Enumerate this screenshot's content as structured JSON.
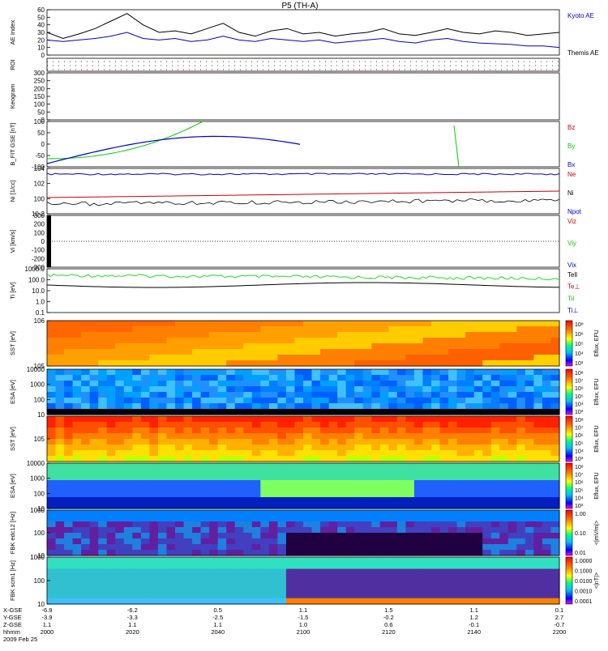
{
  "title": "P5 (TH-A)",
  "colors": {
    "kyoto": "#000000",
    "themis": "#0000cc",
    "red": "#cc0000",
    "green": "#00cc00",
    "blue": "#0000cc",
    "black": "#000000"
  },
  "chart_data": [
    {
      "type": "line",
      "name": "AE Index",
      "ylabel": "AE Index",
      "ylim": [
        0,
        60
      ],
      "yticks": [
        "0",
        "10",
        "20",
        "30",
        "40",
        "50",
        "60"
      ],
      "legend": [
        "Kyoto AE",
        "Themis AE"
      ],
      "series": [
        {
          "name": "Kyoto AE",
          "color": "#000000",
          "values": [
            30,
            22,
            28,
            35,
            45,
            55,
            40,
            30,
            32,
            28,
            35,
            42,
            30,
            25,
            32,
            35,
            28,
            30,
            25,
            28,
            30,
            35,
            28,
            26,
            30,
            35,
            30,
            28,
            32,
            30,
            26,
            28,
            30
          ]
        },
        {
          "name": "Themis AE",
          "color": "#0000cc",
          "values": [
            20,
            18,
            20,
            22,
            25,
            30,
            22,
            20,
            22,
            18,
            20,
            25,
            20,
            18,
            22,
            20,
            18,
            20,
            16,
            18,
            20,
            22,
            18,
            16,
            20,
            22,
            18,
            16,
            15,
            14,
            12,
            12,
            10
          ]
        }
      ]
    },
    {
      "type": "heatmap",
      "name": "ROI",
      "ylabel": "ROI"
    },
    {
      "type": "line",
      "name": "Keogram",
      "ylabel": "Keogram",
      "ylim": [
        0,
        300
      ],
      "yticks": [
        "0",
        "50",
        "100",
        "150",
        "200",
        "250",
        "300"
      ]
    },
    {
      "type": "line",
      "name": "B FIT",
      "ylabel": "B_FIT GSE [nT]",
      "ylim": [
        -100,
        100
      ],
      "yticks": [
        "-100",
        "-50",
        "0",
        "50",
        "100"
      ],
      "legend": [
        "Bz",
        "By",
        "Bx"
      ]
    },
    {
      "type": "line",
      "name": "Ni",
      "ylabel": "Ni [1/cc]",
      "yscale": "log",
      "yticks": [
        "10-2",
        "100",
        "102",
        "104"
      ],
      "legend": [
        "Ne",
        "Ni",
        "Npot"
      ]
    },
    {
      "type": "line",
      "name": "Vi",
      "ylabel": "Vi [km/s]",
      "ylim": [
        -300,
        300
      ],
      "yticks": [
        "-300",
        "-200",
        "-100",
        "0",
        "100",
        "200",
        "300"
      ],
      "legend": [
        "Viz",
        "Viy",
        "Vix"
      ]
    },
    {
      "type": "line",
      "name": "Ti",
      "ylabel": "Ti [eV]",
      "yscale": "log",
      "yticks": [
        "0.1",
        "1.0",
        "10.0",
        "100.0",
        "1000.0"
      ],
      "legend": [
        "Tell",
        "Te⊥",
        "Til",
        "Ti⊥"
      ]
    },
    {
      "type": "heatmap",
      "name": "SST ions",
      "ylabel": "SST [eV]",
      "yticks": [
        "105",
        "106"
      ],
      "cbar": [
        "10⁸",
        "10⁶",
        "10⁵",
        "10⁴",
        "10³"
      ],
      "cbar_label": "Eflux, EFU"
    },
    {
      "type": "heatmap",
      "name": "ESA ions",
      "ylabel": "ESA [eV]",
      "yticks": [
        "10",
        "100",
        "1000",
        "10000"
      ],
      "cbar": [
        "10⁸",
        "10⁷",
        "10⁶",
        "10⁵",
        "10⁴",
        "10³"
      ],
      "cbar_label": "Eflux, EFU"
    },
    {
      "type": "heatmap",
      "name": "SST elec",
      "ylabel": "SST [eV]",
      "yticks": [
        "105"
      ],
      "cbar": [
        "10⁸",
        "10⁷",
        "10⁶",
        "10⁵",
        "10⁴",
        "10³"
      ],
      "cbar_label": "Eflux, EFU"
    },
    {
      "type": "heatmap",
      "name": "ESA elec",
      "ylabel": "ESA [eV]",
      "yticks": [
        "10",
        "100",
        "1000",
        "10000"
      ],
      "cbar": [
        "10⁸",
        "10⁷",
        "10⁶",
        "10⁵",
        "10⁴",
        "10³"
      ],
      "cbar_label": "Eflux, EFU"
    },
    {
      "type": "heatmap",
      "name": "FBK edc12",
      "ylabel": "FBK edc12 [Hz]",
      "yticks": [
        "10",
        "100",
        "1000"
      ],
      "cbar": [
        "1.00",
        "0.10",
        "0.01"
      ],
      "cbar_label": "<|mV/m|>"
    },
    {
      "type": "heatmap",
      "name": "FBK scm1",
      "ylabel": "FBK scm1 [Hz]",
      "yticks": [
        "10",
        "100",
        "1000"
      ],
      "cbar": [
        "1.0000",
        "0.1000",
        "0.0100",
        "0.0010",
        "0.0001"
      ],
      "cbar_label": "<|nT|>"
    }
  ],
  "xaxis": {
    "rows": [
      {
        "label": "X-GSE",
        "values": [
          "-6.9",
          "-6.2",
          "0.5",
          "1.1",
          "1.5",
          "1.1",
          "0.1"
        ]
      },
      {
        "label": "Y-GSE",
        "values": [
          "-3.9",
          "-3.3",
          "-2.5",
          "-1.5",
          "-0.2",
          "1.2",
          "2.7"
        ]
      },
      {
        "label": "Z-GSE",
        "values": [
          "1.1",
          "1.1",
          "1.1",
          "1.0",
          "0.6",
          "-0.1",
          "-0.7"
        ]
      },
      {
        "label": "hhmm",
        "values": [
          "2000",
          "2020",
          "2040",
          "2100",
          "2120",
          "2140",
          "2200"
        ]
      }
    ],
    "date": "2009 Feb 25"
  }
}
